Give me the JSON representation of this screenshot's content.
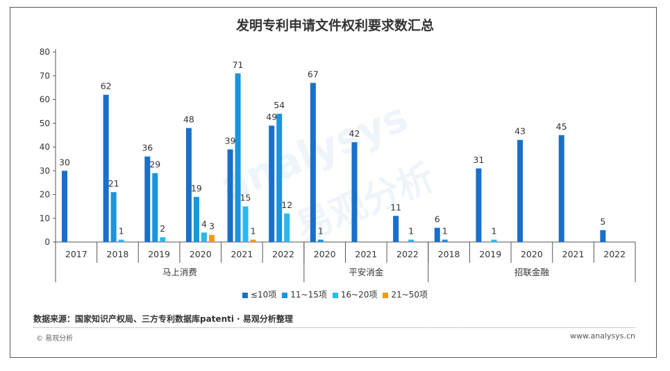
{
  "colors": {
    "s1": "#1a6fc9",
    "s2": "#1a94dc",
    "s3": "#2ab8ee",
    "s4": "#f29818",
    "axis": "#555555",
    "text": "#333333"
  },
  "watermark": {
    "logo": "analysys",
    "logo_cn": "易观分析"
  },
  "footer": {
    "source": "数据来源：国家知识产权局、三方专利数据库patenti · 易观分析整理",
    "copyright": "© 易观分析",
    "website": "www.analysys.cn"
  },
  "chart_data": {
    "type": "bar",
    "title": "发明专利申请文件权利要求数汇总",
    "ylim": [
      0,
      80
    ],
    "yticks": [
      0,
      10,
      20,
      30,
      40,
      50,
      60,
      70,
      80
    ],
    "grid": false,
    "legend_position": "bottom",
    "groups": [
      {
        "name": "马上消费",
        "categories": [
          "2017",
          "2018",
          "2019",
          "2020",
          "2021",
          "2022"
        ]
      },
      {
        "name": "平安消金",
        "categories": [
          "2020",
          "2021",
          "2022"
        ]
      },
      {
        "name": "招联金融",
        "categories": [
          "2018",
          "2019",
          "2020",
          "2021",
          "2022"
        ]
      }
    ],
    "series": [
      {
        "name": "≤10项",
        "values": [
          30,
          62,
          36,
          48,
          39,
          49,
          67,
          42,
          11,
          6,
          31,
          43,
          45,
          5
        ]
      },
      {
        "name": "11~15项",
        "values": [
          null,
          21,
          29,
          19,
          71,
          54,
          1,
          null,
          null,
          1,
          null,
          null,
          null,
          null
        ]
      },
      {
        "name": "16~20项",
        "values": [
          null,
          1,
          2,
          4,
          15,
          12,
          null,
          null,
          1,
          null,
          1,
          null,
          null,
          null
        ]
      },
      {
        "name": "21~50项",
        "values": [
          null,
          null,
          null,
          3,
          1,
          null,
          null,
          null,
          null,
          null,
          null,
          null,
          null,
          null
        ]
      }
    ]
  }
}
